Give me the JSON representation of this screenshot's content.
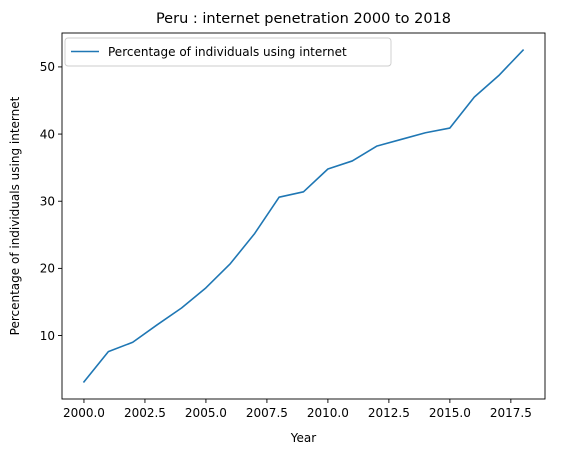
{
  "chart_data": {
    "type": "line",
    "title": "Peru : internet penetration 2000 to 2018",
    "xlabel": "Year",
    "ylabel": "Percentage of individuals using internet",
    "xlim": [
      1999.1,
      2018.9
    ],
    "ylim": [
      0.55,
      55.05
    ],
    "xticks": [
      2000.0,
      2002.5,
      2005.0,
      2007.5,
      2010.0,
      2012.5,
      2015.0,
      2017.5
    ],
    "xtick_labels": [
      "2000.0",
      "2002.5",
      "2005.0",
      "2007.5",
      "2010.0",
      "2012.5",
      "2015.0",
      "2017.5"
    ],
    "yticks": [
      10,
      20,
      30,
      40,
      50
    ],
    "ytick_labels": [
      "10",
      "20",
      "30",
      "40",
      "50"
    ],
    "grid": false,
    "legend_position": "top-left",
    "series": [
      {
        "name": "Percentage of individuals using internet",
        "color": "#1f77b4",
        "x": [
          2000,
          2001,
          2002,
          2003,
          2004,
          2005,
          2006,
          2007,
          2008,
          2009,
          2010,
          2011,
          2012,
          2013,
          2014,
          2015,
          2016,
          2017,
          2018
        ],
        "y": [
          3.1,
          7.6,
          9.0,
          11.6,
          14.1,
          17.1,
          20.7,
          25.2,
          30.6,
          31.4,
          34.8,
          36.0,
          38.2,
          39.2,
          40.2,
          40.9,
          45.5,
          48.7,
          52.5
        ]
      }
    ]
  }
}
